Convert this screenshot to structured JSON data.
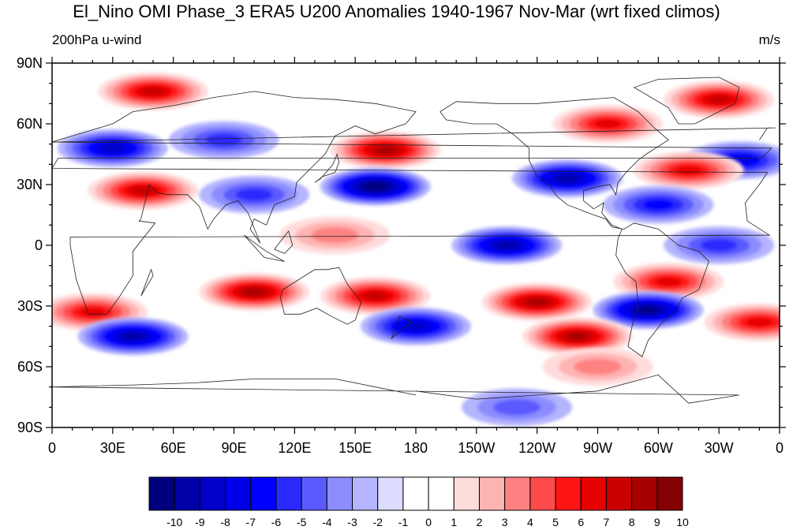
{
  "title": "El_Nino OMI Phase_3 ERA5 U200 Anomalies 1940-1967 Nov-Mar (wrt fixed climos)",
  "left_string": "200hPa u-wind",
  "right_string": "m/s",
  "map": {
    "projection": "cylindrical equidistant",
    "lon_range": [
      0,
      360
    ],
    "lat_range": [
      -90,
      90
    ],
    "coastlines": true,
    "lat_tick_labels": [
      "90N",
      "60N",
      "30N",
      "0",
      "30S",
      "60S",
      "90S"
    ],
    "lat_tick_values": [
      90,
      60,
      30,
      0,
      -30,
      -60,
      -90
    ],
    "lon_tick_labels": [
      "0",
      "30E",
      "60E",
      "90E",
      "120E",
      "150E",
      "180",
      "150W",
      "120W",
      "90W",
      "60W",
      "30W",
      "0"
    ],
    "lon_tick_values": [
      0,
      30,
      60,
      90,
      120,
      150,
      180,
      210,
      240,
      270,
      300,
      330,
      360
    ]
  },
  "colorbar": {
    "labels": [
      "-10",
      "-9",
      "-8",
      "-7",
      "-6",
      "-5",
      "-4",
      "-3",
      "-2",
      "-1",
      "0",
      "1",
      "2",
      "3",
      "4",
      "5",
      "6",
      "7",
      "8",
      "9",
      "10"
    ],
    "colors": [
      "#00007f",
      "#0000a8",
      "#0000c8",
      "#0000e6",
      "#0000ff",
      "#2a2aff",
      "#5a5aff",
      "#8c8cff",
      "#b4b4ff",
      "#dcdcff",
      "#ffffff",
      "#ffffff",
      "#ffdcdc",
      "#ffb4b4",
      "#ff8282",
      "#ff4b4b",
      "#ff1414",
      "#e60000",
      "#c80000",
      "#a80000",
      "#850000"
    ]
  },
  "anomaly_features": [
    {
      "lon": 50,
      "lat": 76,
      "value": 7
    },
    {
      "lon": 330,
      "lat": 72,
      "value": 7
    },
    {
      "lon": 275,
      "lat": 60,
      "value": 6
    },
    {
      "lon": 30,
      "lat": 48,
      "value": -7
    },
    {
      "lon": 85,
      "lat": 52,
      "value": -4
    },
    {
      "lon": 165,
      "lat": 47,
      "value": 8
    },
    {
      "lon": 340,
      "lat": 42,
      "value": -6
    },
    {
      "lon": 255,
      "lat": 33,
      "value": -8
    },
    {
      "lon": 315,
      "lat": 37,
      "value": 6
    },
    {
      "lon": 45,
      "lat": 27,
      "value": 7
    },
    {
      "lon": 100,
      "lat": 25,
      "value": -4
    },
    {
      "lon": 160,
      "lat": 29,
      "value": -10
    },
    {
      "lon": 300,
      "lat": 20,
      "value": -5
    },
    {
      "lon": 140,
      "lat": 5,
      "value": 3
    },
    {
      "lon": 225,
      "lat": 0,
      "value": -8
    },
    {
      "lon": 330,
      "lat": 0,
      "value": -4
    },
    {
      "lon": 100,
      "lat": -23,
      "value": 8
    },
    {
      "lon": 20,
      "lat": -33,
      "value": 6
    },
    {
      "lon": 160,
      "lat": -25,
      "value": 7
    },
    {
      "lon": 240,
      "lat": -28,
      "value": 8
    },
    {
      "lon": 305,
      "lat": -18,
      "value": 6
    },
    {
      "lon": 40,
      "lat": -45,
      "value": -8
    },
    {
      "lon": 180,
      "lat": -40,
      "value": -7
    },
    {
      "lon": 295,
      "lat": -32,
      "value": -9
    },
    {
      "lon": 260,
      "lat": -45,
      "value": 8
    },
    {
      "lon": 350,
      "lat": -38,
      "value": 6
    },
    {
      "lon": 270,
      "lat": -60,
      "value": 3
    },
    {
      "lon": 230,
      "lat": -80,
      "value": -3
    }
  ]
}
